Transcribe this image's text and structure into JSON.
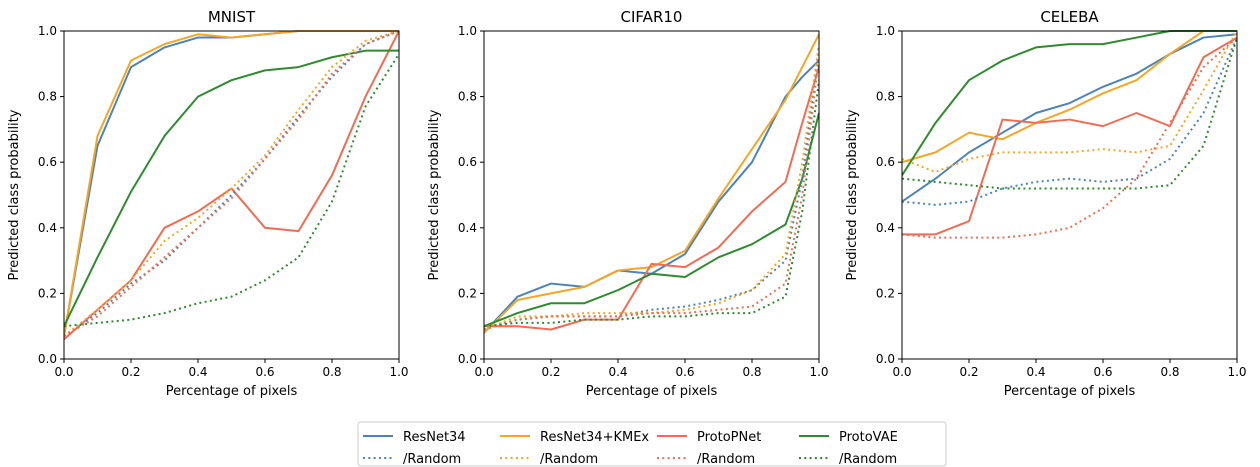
{
  "chart_data": [
    {
      "type": "line",
      "title": "MNIST",
      "xlabel": "Percentage of pixels",
      "ylabel": "Predicted class probability",
      "xlim": [
        0,
        1
      ],
      "ylim": [
        0,
        1
      ],
      "xticks": [
        "0.0",
        "0.2",
        "0.4",
        "0.6",
        "0.8",
        "1.0"
      ],
      "yticks": [
        "0.0",
        "0.2",
        "0.4",
        "0.6",
        "0.8",
        "1.0"
      ],
      "x": [
        0,
        0.1,
        0.2,
        0.3,
        0.4,
        0.5,
        0.6,
        0.7,
        0.8,
        0.9,
        1.0
      ],
      "series": [
        {
          "name": "ResNet34",
          "style": "solid",
          "color": "#4c84b8",
          "values": [
            0.07,
            0.65,
            0.89,
            0.95,
            0.98,
            0.98,
            0.99,
            1.0,
            1.0,
            1.0,
            1.0
          ]
        },
        {
          "name": "ResNet34+KMEx",
          "style": "solid",
          "color": "#f5a623",
          "values": [
            0.07,
            0.68,
            0.91,
            0.96,
            0.99,
            0.98,
            0.99,
            1.0,
            1.0,
            1.0,
            1.0
          ]
        },
        {
          "name": "ProtoPNet",
          "style": "solid",
          "color": "#f26b52",
          "values": [
            0.06,
            0.15,
            0.24,
            0.4,
            0.45,
            0.52,
            0.4,
            0.39,
            0.56,
            0.8,
            1.0
          ]
        },
        {
          "name": "ProtoVAE",
          "style": "solid",
          "color": "#2e8b2e",
          "values": [
            0.1,
            0.31,
            0.51,
            0.68,
            0.8,
            0.85,
            0.88,
            0.89,
            0.92,
            0.94,
            0.94
          ]
        },
        {
          "name": "/Random",
          "style": "dotted",
          "color": "#4c84b8",
          "values": [
            0.07,
            0.14,
            0.23,
            0.3,
            0.4,
            0.5,
            0.61,
            0.74,
            0.86,
            0.96,
            1.0
          ]
        },
        {
          "name": "/Random",
          "style": "dotted",
          "color": "#f5a623",
          "values": [
            0.07,
            0.15,
            0.24,
            0.36,
            0.43,
            0.52,
            0.62,
            0.76,
            0.89,
            0.97,
            1.0
          ]
        },
        {
          "name": "/Random",
          "style": "dotted",
          "color": "#f26b52",
          "values": [
            0.07,
            0.13,
            0.22,
            0.31,
            0.4,
            0.49,
            0.61,
            0.73,
            0.87,
            0.96,
            1.0
          ]
        },
        {
          "name": "/Random",
          "style": "dotted",
          "color": "#2e8b2e",
          "values": [
            0.1,
            0.11,
            0.12,
            0.14,
            0.17,
            0.19,
            0.24,
            0.31,
            0.48,
            0.77,
            0.93
          ]
        }
      ]
    },
    {
      "type": "line",
      "title": "CIFAR10",
      "xlabel": "Percentage of pixels",
      "ylabel": "Predicted class probability",
      "xlim": [
        0,
        1
      ],
      "ylim": [
        0,
        1
      ],
      "xticks": [
        "0.0",
        "0.2",
        "0.4",
        "0.6",
        "0.8",
        "1.0"
      ],
      "yticks": [
        "0.0",
        "0.2",
        "0.4",
        "0.6",
        "0.8",
        "1.0"
      ],
      "x": [
        0,
        0.1,
        0.2,
        0.3,
        0.4,
        0.5,
        0.6,
        0.7,
        0.8,
        0.9,
        0.95,
        1.0
      ],
      "series": [
        {
          "name": "ResNet34",
          "style": "solid",
          "color": "#4c84b8",
          "values": [
            0.08,
            0.19,
            0.23,
            0.22,
            0.27,
            0.26,
            0.32,
            0.48,
            0.6,
            0.8,
            0.86,
            0.91
          ]
        },
        {
          "name": "ResNet34+KMEx",
          "style": "solid",
          "color": "#f5a623",
          "values": [
            0.08,
            0.18,
            0.2,
            0.22,
            0.27,
            0.28,
            0.33,
            0.49,
            0.64,
            0.79,
            0.89,
            0.99
          ]
        },
        {
          "name": "ProtoPNet",
          "style": "solid",
          "color": "#f26b52",
          "values": [
            0.1,
            0.1,
            0.09,
            0.12,
            0.12,
            0.29,
            0.28,
            0.34,
            0.45,
            0.54,
            0.72,
            0.89
          ]
        },
        {
          "name": "ProtoVAE",
          "style": "solid",
          "color": "#2e8b2e",
          "values": [
            0.1,
            0.14,
            0.17,
            0.17,
            0.21,
            0.26,
            0.25,
            0.31,
            0.35,
            0.41,
            0.55,
            0.75
          ]
        },
        {
          "name": "/Random",
          "style": "dotted",
          "color": "#4c84b8",
          "values": [
            0.09,
            0.12,
            0.13,
            0.13,
            0.13,
            0.15,
            0.16,
            0.18,
            0.21,
            0.3,
            0.55,
            0.95
          ]
        },
        {
          "name": "/Random",
          "style": "dotted",
          "color": "#f5a623",
          "values": [
            0.09,
            0.13,
            0.13,
            0.14,
            0.14,
            0.14,
            0.15,
            0.17,
            0.21,
            0.32,
            0.6,
            0.96
          ]
        },
        {
          "name": "/Random",
          "style": "dotted",
          "color": "#f26b52",
          "values": [
            0.09,
            0.12,
            0.13,
            0.13,
            0.13,
            0.14,
            0.14,
            0.15,
            0.16,
            0.23,
            0.5,
            0.92
          ]
        },
        {
          "name": "/Random",
          "style": "dotted",
          "color": "#2e8b2e",
          "values": [
            0.1,
            0.11,
            0.11,
            0.12,
            0.12,
            0.13,
            0.13,
            0.14,
            0.14,
            0.19,
            0.45,
            0.85
          ]
        }
      ]
    },
    {
      "type": "line",
      "title": "CELEBA",
      "xlabel": "Percentage of pixels",
      "ylabel": "Predicted class probability",
      "xlim": [
        0,
        1
      ],
      "ylim": [
        0,
        1
      ],
      "xticks": [
        "0.0",
        "0.2",
        "0.4",
        "0.6",
        "0.8",
        "1.0"
      ],
      "yticks": [
        "0.0",
        "0.2",
        "0.4",
        "0.6",
        "0.8",
        "1.0"
      ],
      "x": [
        0,
        0.1,
        0.2,
        0.3,
        0.4,
        0.5,
        0.6,
        0.7,
        0.8,
        0.9,
        1.0
      ],
      "series": [
        {
          "name": "ResNet34",
          "style": "solid",
          "color": "#4c84b8",
          "values": [
            0.48,
            0.55,
            0.63,
            0.69,
            0.75,
            0.78,
            0.83,
            0.87,
            0.93,
            0.98,
            0.99
          ]
        },
        {
          "name": "ResNet34+KMEx",
          "style": "solid",
          "color": "#f5a623",
          "values": [
            0.6,
            0.63,
            0.69,
            0.67,
            0.72,
            0.76,
            0.81,
            0.85,
            0.93,
            1.0,
            1.0
          ]
        },
        {
          "name": "ProtoPNet",
          "style": "solid",
          "color": "#f26b52",
          "values": [
            0.38,
            0.38,
            0.42,
            0.73,
            0.72,
            0.73,
            0.71,
            0.75,
            0.71,
            0.92,
            0.98
          ]
        },
        {
          "name": "ProtoVAE",
          "style": "solid",
          "color": "#2e8b2e",
          "values": [
            0.56,
            0.72,
            0.85,
            0.91,
            0.95,
            0.96,
            0.96,
            0.98,
            1.0,
            1.0,
            1.0
          ]
        },
        {
          "name": "/Random",
          "style": "dotted",
          "color": "#4c84b8",
          "values": [
            0.48,
            0.47,
            0.48,
            0.52,
            0.54,
            0.55,
            0.54,
            0.55,
            0.61,
            0.75,
            0.98
          ]
        },
        {
          "name": "/Random",
          "style": "dotted",
          "color": "#f5a623",
          "values": [
            0.61,
            0.57,
            0.61,
            0.63,
            0.63,
            0.63,
            0.64,
            0.63,
            0.65,
            0.82,
            1.0
          ]
        },
        {
          "name": "/Random",
          "style": "dotted",
          "color": "#f26b52",
          "values": [
            0.38,
            0.37,
            0.37,
            0.37,
            0.38,
            0.4,
            0.46,
            0.55,
            0.72,
            0.89,
            0.98
          ]
        },
        {
          "name": "/Random",
          "style": "dotted",
          "color": "#2e8b2e",
          "values": [
            0.55,
            0.54,
            0.53,
            0.52,
            0.52,
            0.52,
            0.52,
            0.52,
            0.53,
            0.65,
            0.98
          ]
        }
      ]
    }
  ],
  "legend": {
    "placement": "bottom-center",
    "entries": [
      {
        "label": "ResNet34",
        "style": "solid",
        "color": "#4c84b8"
      },
      {
        "label": "/Random",
        "style": "dotted",
        "color": "#4c84b8"
      },
      {
        "label": "ResNet34+KMEx",
        "style": "solid",
        "color": "#f5a623"
      },
      {
        "label": "/Random",
        "style": "dotted",
        "color": "#f5a623"
      },
      {
        "label": "ProtoPNet",
        "style": "solid",
        "color": "#f26b52"
      },
      {
        "label": "/Random",
        "style": "dotted",
        "color": "#f26b52"
      },
      {
        "label": "ProtoVAE",
        "style": "solid",
        "color": "#2e8b2e"
      },
      {
        "label": "/Random",
        "style": "dotted",
        "color": "#2e8b2e"
      }
    ]
  }
}
